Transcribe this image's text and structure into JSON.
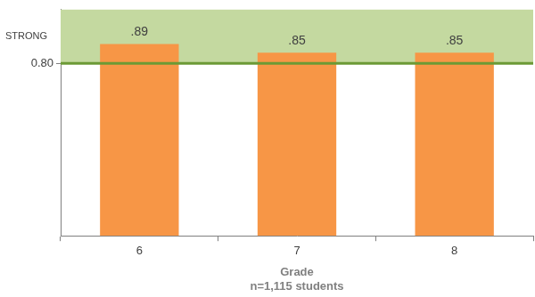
{
  "chart_data": {
    "type": "bar",
    "categories": [
      "6",
      "7",
      "8"
    ],
    "values": [
      0.89,
      0.85,
      0.85
    ],
    "value_labels": [
      ".89",
      ".85",
      ".85"
    ],
    "data_labels": true,
    "color": "#f79646",
    "x_label": "Grade",
    "note": "n=1,115 students",
    "ylim": [
      0,
      1.05
    ],
    "yticks": [
      {
        "value": 0.8,
        "label": "0.80"
      }
    ],
    "threshold": {
      "value": 0.8,
      "label": "STRONG"
    },
    "grid": false
  }
}
